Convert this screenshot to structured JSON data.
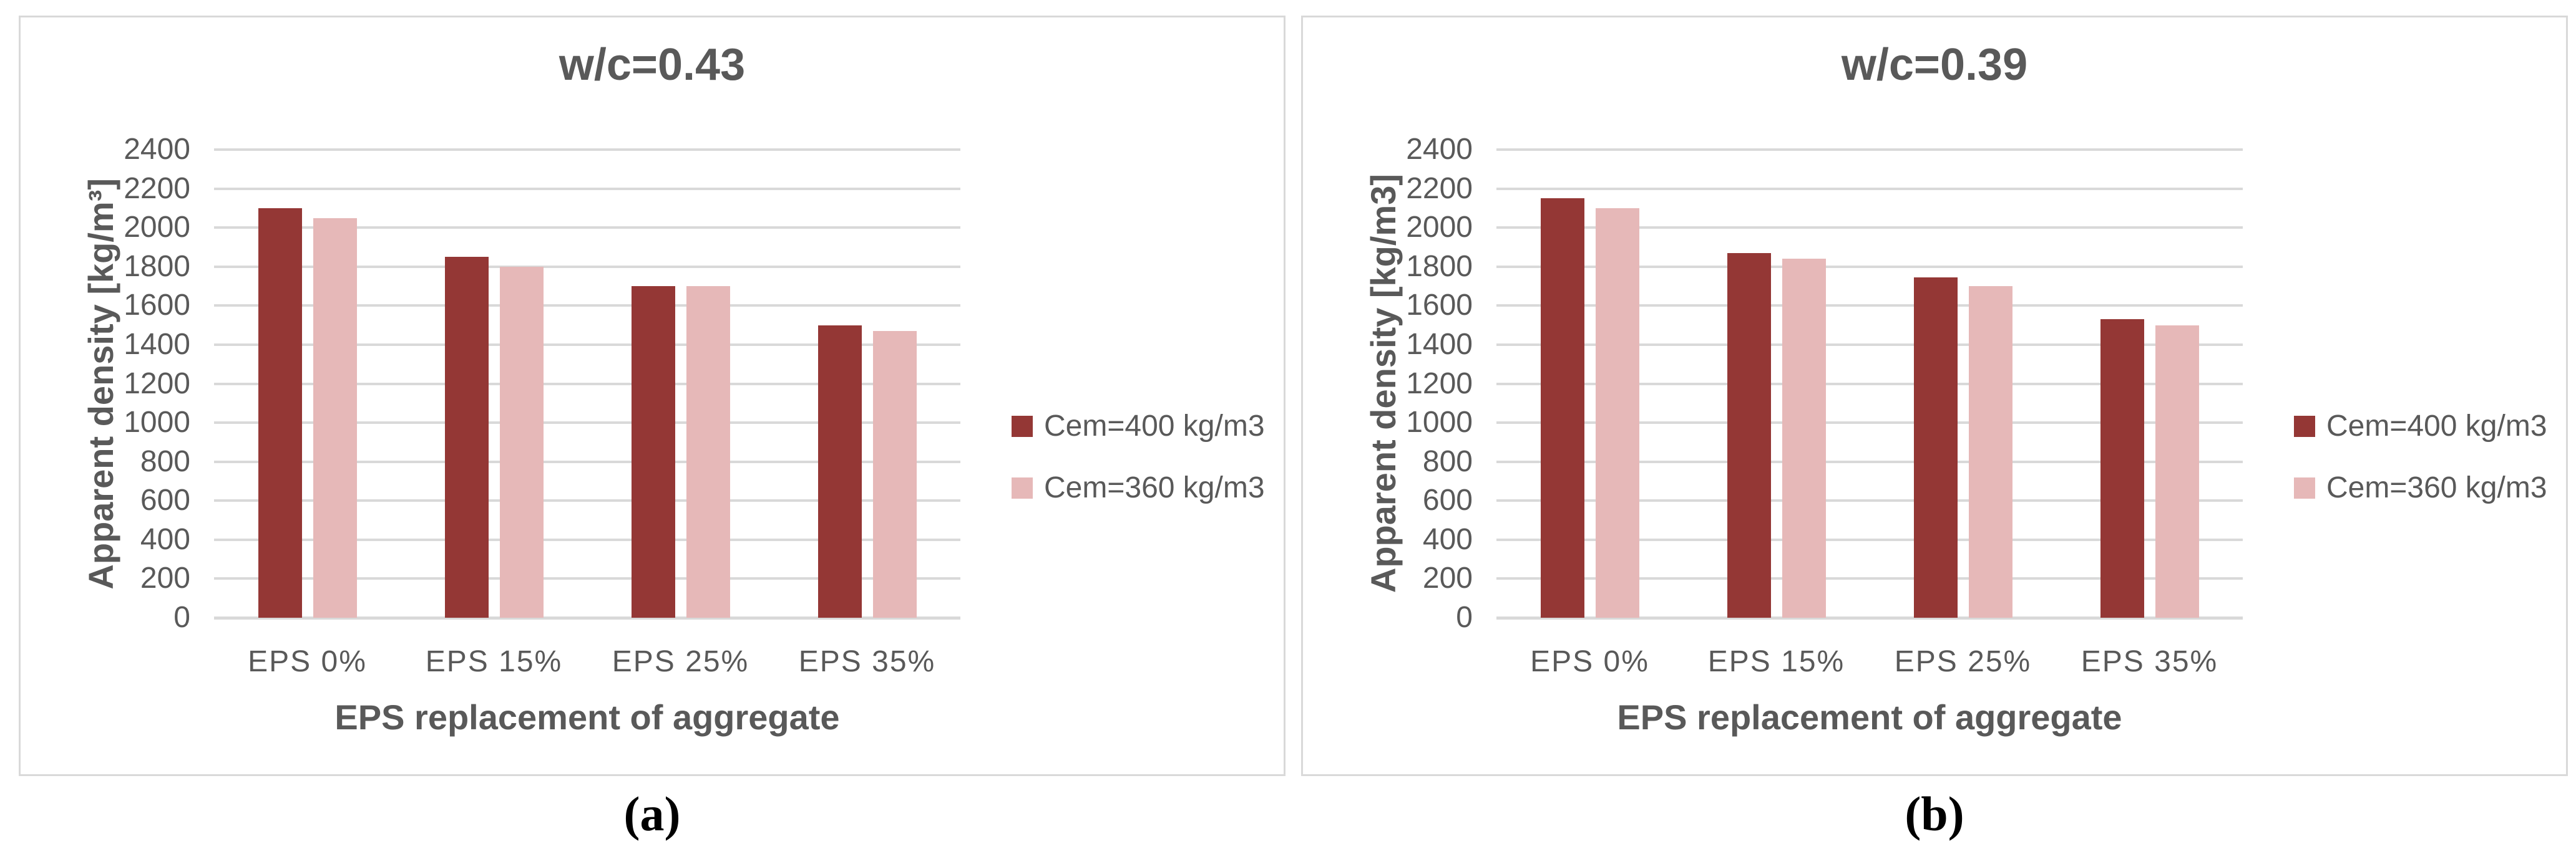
{
  "colors": {
    "series_dark_red": "#943735",
    "series_pink": "#e6b8b8",
    "gridline": "#d9d9d9",
    "panel_border": "#d9d9d9",
    "chart_text": "#595959",
    "caption_text": "#000000"
  },
  "chart_data": [
    {
      "type": "bar",
      "title": "w/c=0.43",
      "ylabel": "Apparent density [kg/m³]",
      "xlabel": "EPS replacement of aggregate",
      "panel_label": "(a)",
      "categories": [
        "EPS 0%",
        "EPS 15%",
        "EPS 25%",
        "EPS 35%"
      ],
      "series": [
        {
          "name": "Cem=400 kg/m3",
          "color": "#943735",
          "values": [
            2100,
            1850,
            1700,
            1500
          ]
        },
        {
          "name": "Cem=360 kg/m3",
          "color": "#e6b8b8",
          "values": [
            2050,
            1800,
            1700,
            1470
          ]
        }
      ],
      "ylim": [
        0,
        2400
      ],
      "y_ticks": [
        0,
        200,
        400,
        600,
        800,
        1000,
        1200,
        1400,
        1600,
        1800,
        2000,
        2200,
        2400
      ],
      "grid": true,
      "legend_position": "right"
    },
    {
      "type": "bar",
      "title": "w/c=0.39",
      "ylabel": "Apparent density [kg/m3]",
      "xlabel": "EPS replacement of aggregate",
      "panel_label": "(b)",
      "categories": [
        "EPS 0%",
        "EPS 15%",
        "EPS 25%",
        "EPS 35%"
      ],
      "series": [
        {
          "name": "Cem=400 kg/m3",
          "color": "#943735",
          "values": [
            2150,
            1870,
            1745,
            1530
          ]
        },
        {
          "name": "Cem=360 kg/m3",
          "color": "#e6b8b8",
          "values": [
            2100,
            1840,
            1700,
            1500
          ]
        }
      ],
      "ylim": [
        0,
        2400
      ],
      "y_ticks": [
        0,
        200,
        400,
        600,
        800,
        1000,
        1200,
        1400,
        1600,
        1800,
        2000,
        2200,
        2400
      ],
      "grid": true,
      "legend_position": "right"
    }
  ]
}
